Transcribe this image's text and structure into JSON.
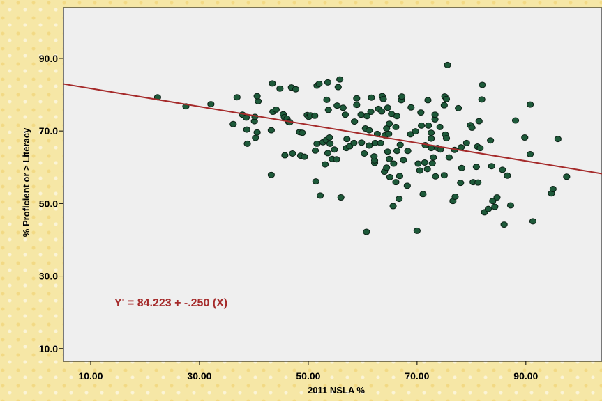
{
  "chart_data": {
    "type": "scatter",
    "title": "",
    "xlabel": "2011 NSLA %",
    "ylabel": "% Proficient or > Literacy",
    "xlim": [
      5,
      104
    ],
    "ylim": [
      6.5,
      104
    ],
    "x_ticks": [
      "10.00",
      "30.00",
      "50.00",
      "70.00",
      "90.00"
    ],
    "y_ticks": [
      "10.0",
      "30.0",
      "50.0",
      "70.0",
      "90.0"
    ],
    "grid": false,
    "point_color": "#1e5a3a",
    "line_color": "#a52a2a",
    "fit_line": {
      "intercept": 84.223,
      "slope": -0.25,
      "label": "Y' = 84.223 + -.250 (X)"
    },
    "points": [
      [
        22.3,
        79.3
      ],
      [
        27.5,
        76.8
      ],
      [
        32.1,
        77.4
      ],
      [
        36.2,
        71.9
      ],
      [
        36.9,
        79.3
      ],
      [
        37.9,
        74.5
      ],
      [
        38.6,
        73.7
      ],
      [
        38.8,
        66.5
      ],
      [
        38.7,
        70.4
      ],
      [
        40.1,
        72.7
      ],
      [
        40.2,
        73.9
      ],
      [
        40.3,
        68.1
      ],
      [
        40.6,
        69.6
      ],
      [
        40.8,
        78.2
      ],
      [
        40.6,
        79.6
      ],
      [
        43.2,
        70.2
      ],
      [
        43.2,
        57.9
      ],
      [
        43.5,
        75.3
      ],
      [
        43.4,
        83.1
      ],
      [
        44.1,
        75.9
      ],
      [
        44.8,
        81.7
      ],
      [
        45.4,
        74.6
      ],
      [
        45.6,
        73.8
      ],
      [
        45.7,
        63.3
      ],
      [
        46.1,
        73.4
      ],
      [
        46.4,
        72.5
      ],
      [
        46.6,
        72.4
      ],
      [
        46.9,
        82.0
      ],
      [
        47.1,
        63.8
      ],
      [
        47.7,
        81.5
      ],
      [
        48.4,
        69.7
      ],
      [
        48.6,
        63.2
      ],
      [
        48.9,
        69.5
      ],
      [
        49.3,
        62.9
      ],
      [
        49.8,
        74.4
      ],
      [
        50.1,
        73.9
      ],
      [
        50.4,
        74.3
      ],
      [
        51.2,
        74.2
      ],
      [
        51.4,
        56.1
      ],
      [
        51.3,
        64.6
      ],
      [
        51.6,
        66.5
      ],
      [
        51.6,
        82.5
      ],
      [
        52.0,
        83.0
      ],
      [
        52.2,
        52.2
      ],
      [
        52.7,
        66.9
      ],
      [
        53.1,
        60.8
      ],
      [
        53.3,
        67.5
      ],
      [
        53.6,
        63.9
      ],
      [
        53.7,
        75.8
      ],
      [
        53.4,
        78.6
      ],
      [
        53.6,
        83.4
      ],
      [
        54.0,
        66.5
      ],
      [
        53.9,
        68.2
      ],
      [
        54.4,
        62.3
      ],
      [
        54.8,
        64.9
      ],
      [
        55.2,
        62.2
      ],
      [
        55.3,
        77.0
      ],
      [
        55.5,
        82.1
      ],
      [
        55.8,
        84.2
      ],
      [
        56.0,
        51.7
      ],
      [
        56.4,
        76.4
      ],
      [
        56.8,
        74.5
      ],
      [
        57.0,
        65.3
      ],
      [
        57.1,
        67.8
      ],
      [
        57.6,
        65.8
      ],
      [
        58.4,
        66.7
      ],
      [
        58.5,
        72.6
      ],
      [
        58.9,
        77.2
      ],
      [
        58.9,
        79.0
      ],
      [
        59.7,
        74.5
      ],
      [
        59.8,
        66.8
      ],
      [
        60.3,
        63.8
      ],
      [
        60.5,
        70.7
      ],
      [
        60.7,
        42.2
      ],
      [
        60.8,
        74.1
      ],
      [
        61.2,
        66.0
      ],
      [
        61.2,
        70.2
      ],
      [
        61.5,
        75.3
      ],
      [
        61.6,
        79.2
      ],
      [
        62.2,
        61.2
      ],
      [
        62.2,
        61.9
      ],
      [
        62.1,
        63.0
      ],
      [
        62.3,
        66.7
      ],
      [
        62.7,
        69.2
      ],
      [
        62.9,
        76.1
      ],
      [
        63.3,
        66.7
      ],
      [
        63.5,
        75.4
      ],
      [
        63.6,
        79.6
      ],
      [
        63.8,
        78.8
      ],
      [
        64.0,
        58.8
      ],
      [
        64.4,
        59.9
      ],
      [
        64.1,
        68.8
      ],
      [
        64.4,
        70.7
      ],
      [
        64.9,
        62.3
      ],
      [
        64.6,
        64.3
      ],
      [
        64.6,
        76.4
      ],
      [
        65.0,
        57.3
      ],
      [
        64.8,
        69.2
      ],
      [
        64.9,
        72.0
      ],
      [
        65.3,
        74.7
      ],
      [
        65.6,
        49.3
      ],
      [
        65.7,
        61.0
      ],
      [
        66.1,
        55.9
      ],
      [
        66.3,
        64.5
      ],
      [
        66.1,
        71.1
      ],
      [
        66.3,
        74.1
      ],
      [
        66.7,
        51.3
      ],
      [
        66.8,
        57.6
      ],
      [
        66.9,
        66.2
      ],
      [
        67.1,
        78.5
      ],
      [
        67.2,
        79.5
      ],
      [
        67.5,
        62.0
      ],
      [
        68.2,
        54.9
      ],
      [
        68.3,
        64.5
      ],
      [
        68.8,
        69.1
      ],
      [
        68.9,
        76.5
      ],
      [
        69.7,
        69.9
      ],
      [
        70.0,
        42.5
      ],
      [
        70.2,
        61.0
      ],
      [
        70.5,
        59.1
      ],
      [
        70.7,
        75.1
      ],
      [
        70.8,
        71.5
      ],
      [
        71.1,
        52.6
      ],
      [
        71.4,
        61.3
      ],
      [
        71.5,
        66.1
      ],
      [
        71.9,
        59.5
      ],
      [
        72.0,
        78.5
      ],
      [
        72.1,
        71.5
      ],
      [
        72.6,
        65.3
      ],
      [
        72.6,
        67.9
      ],
      [
        72.6,
        69.5
      ],
      [
        72.8,
        61.1
      ],
      [
        73.0,
        62.7
      ],
      [
        73.4,
        57.5
      ],
      [
        73.3,
        73.2
      ],
      [
        73.3,
        74.5
      ],
      [
        73.8,
        65.3
      ],
      [
        74.3,
        64.9
      ],
      [
        74.2,
        71.1
      ],
      [
        75.0,
        57.8
      ],
      [
        75.0,
        77.1
      ],
      [
        75.1,
        79.5
      ],
      [
        75.2,
        69.0
      ],
      [
        75.4,
        68.0
      ],
      [
        75.4,
        78.8
      ],
      [
        75.6,
        88.2
      ],
      [
        75.9,
        62.7
      ],
      [
        76.6,
        50.7
      ],
      [
        76.9,
        64.8
      ],
      [
        77.0,
        51.9
      ],
      [
        77.6,
        76.3
      ],
      [
        78.0,
        55.7
      ],
      [
        78.1,
        65.5
      ],
      [
        78.2,
        59.8
      ],
      [
        79.1,
        66.7
      ],
      [
        79.8,
        71.6
      ],
      [
        80.1,
        70.9
      ],
      [
        80.3,
        55.9
      ],
      [
        80.9,
        60.1
      ],
      [
        81.1,
        65.7
      ],
      [
        81.2,
        55.8
      ],
      [
        81.4,
        72.7
      ],
      [
        81.6,
        65.3
      ],
      [
        81.9,
        78.7
      ],
      [
        82.0,
        82.7
      ],
      [
        82.4,
        47.6
      ],
      [
        83.1,
        48.5
      ],
      [
        83.5,
        67.4
      ],
      [
        83.7,
        60.3
      ],
      [
        83.9,
        50.7
      ],
      [
        84.3,
        49.1
      ],
      [
        84.7,
        51.7
      ],
      [
        85.7,
        59.3
      ],
      [
        86.0,
        44.2
      ],
      [
        86.6,
        57.7
      ],
      [
        87.2,
        49.5
      ],
      [
        88.1,
        72.9
      ],
      [
        89.8,
        68.2
      ],
      [
        90.8,
        77.3
      ],
      [
        90.8,
        63.6
      ],
      [
        91.3,
        45.1
      ],
      [
        94.7,
        52.8
      ],
      [
        95.0,
        54.0
      ],
      [
        95.9,
        67.8
      ],
      [
        97.5,
        57.4
      ]
    ]
  }
}
